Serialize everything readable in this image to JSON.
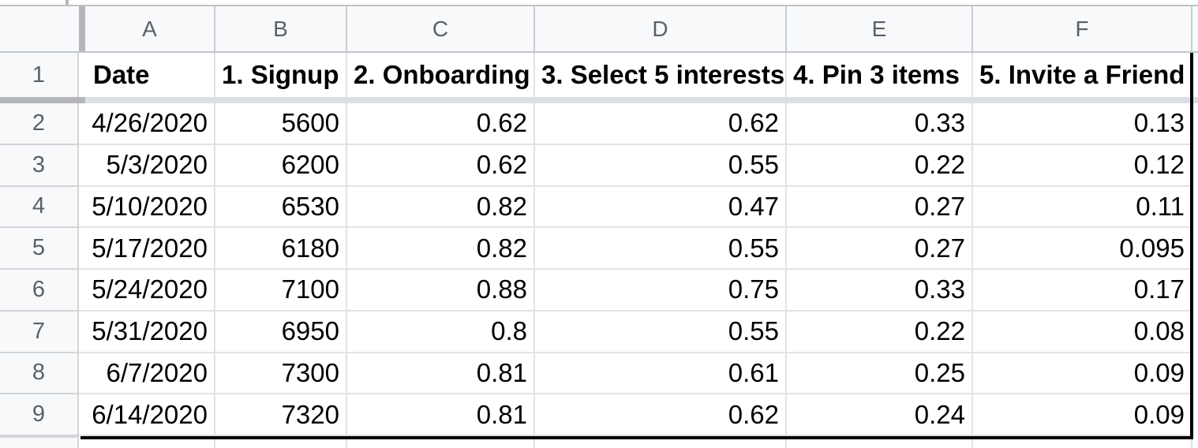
{
  "sheet": {
    "column_headers": [
      "A",
      "B",
      "C",
      "D",
      "E",
      "F"
    ],
    "header_row": {
      "row_number": "1",
      "cells": [
        "Date",
        "1. Signup",
        "2. Onboarding",
        "3. Select 5 interests",
        "4. Pin 3 items",
        "5. Invite a Friend"
      ]
    },
    "rows": [
      {
        "row_number": "2",
        "cells": [
          "4/26/2020",
          "5600",
          "0.62",
          "0.62",
          "0.33",
          "0.13"
        ]
      },
      {
        "row_number": "3",
        "cells": [
          "5/3/2020",
          "6200",
          "0.62",
          "0.55",
          "0.22",
          "0.12"
        ]
      },
      {
        "row_number": "4",
        "cells": [
          "5/10/2020",
          "6530",
          "0.82",
          "0.47",
          "0.27",
          "0.11"
        ]
      },
      {
        "row_number": "5",
        "cells": [
          "5/17/2020",
          "6180",
          "0.82",
          "0.55",
          "0.27",
          "0.095"
        ]
      },
      {
        "row_number": "6",
        "cells": [
          "5/24/2020",
          "7100",
          "0.88",
          "0.75",
          "0.33",
          "0.17"
        ]
      },
      {
        "row_number": "7",
        "cells": [
          "5/31/2020",
          "6950",
          "0.8",
          "0.55",
          "0.22",
          "0.08"
        ]
      },
      {
        "row_number": "8",
        "cells": [
          "6/7/2020",
          "7300",
          "0.81",
          "0.61",
          "0.25",
          "0.09"
        ]
      },
      {
        "row_number": "9",
        "cells": [
          "6/14/2020",
          "7320",
          "0.81",
          "0.62",
          "0.24",
          "0.09"
        ]
      }
    ],
    "colors": {
      "header_background": "#f8f9fa",
      "header_text": "#5b6066",
      "grid_line": "#e2e2e2",
      "header_grid_line": "#c9ccd1",
      "freeze_handle": "#b4b6b9",
      "freeze_shadow": "#dce0e6",
      "data_range_border": "#000000",
      "cell_text": "#000000"
    }
  }
}
